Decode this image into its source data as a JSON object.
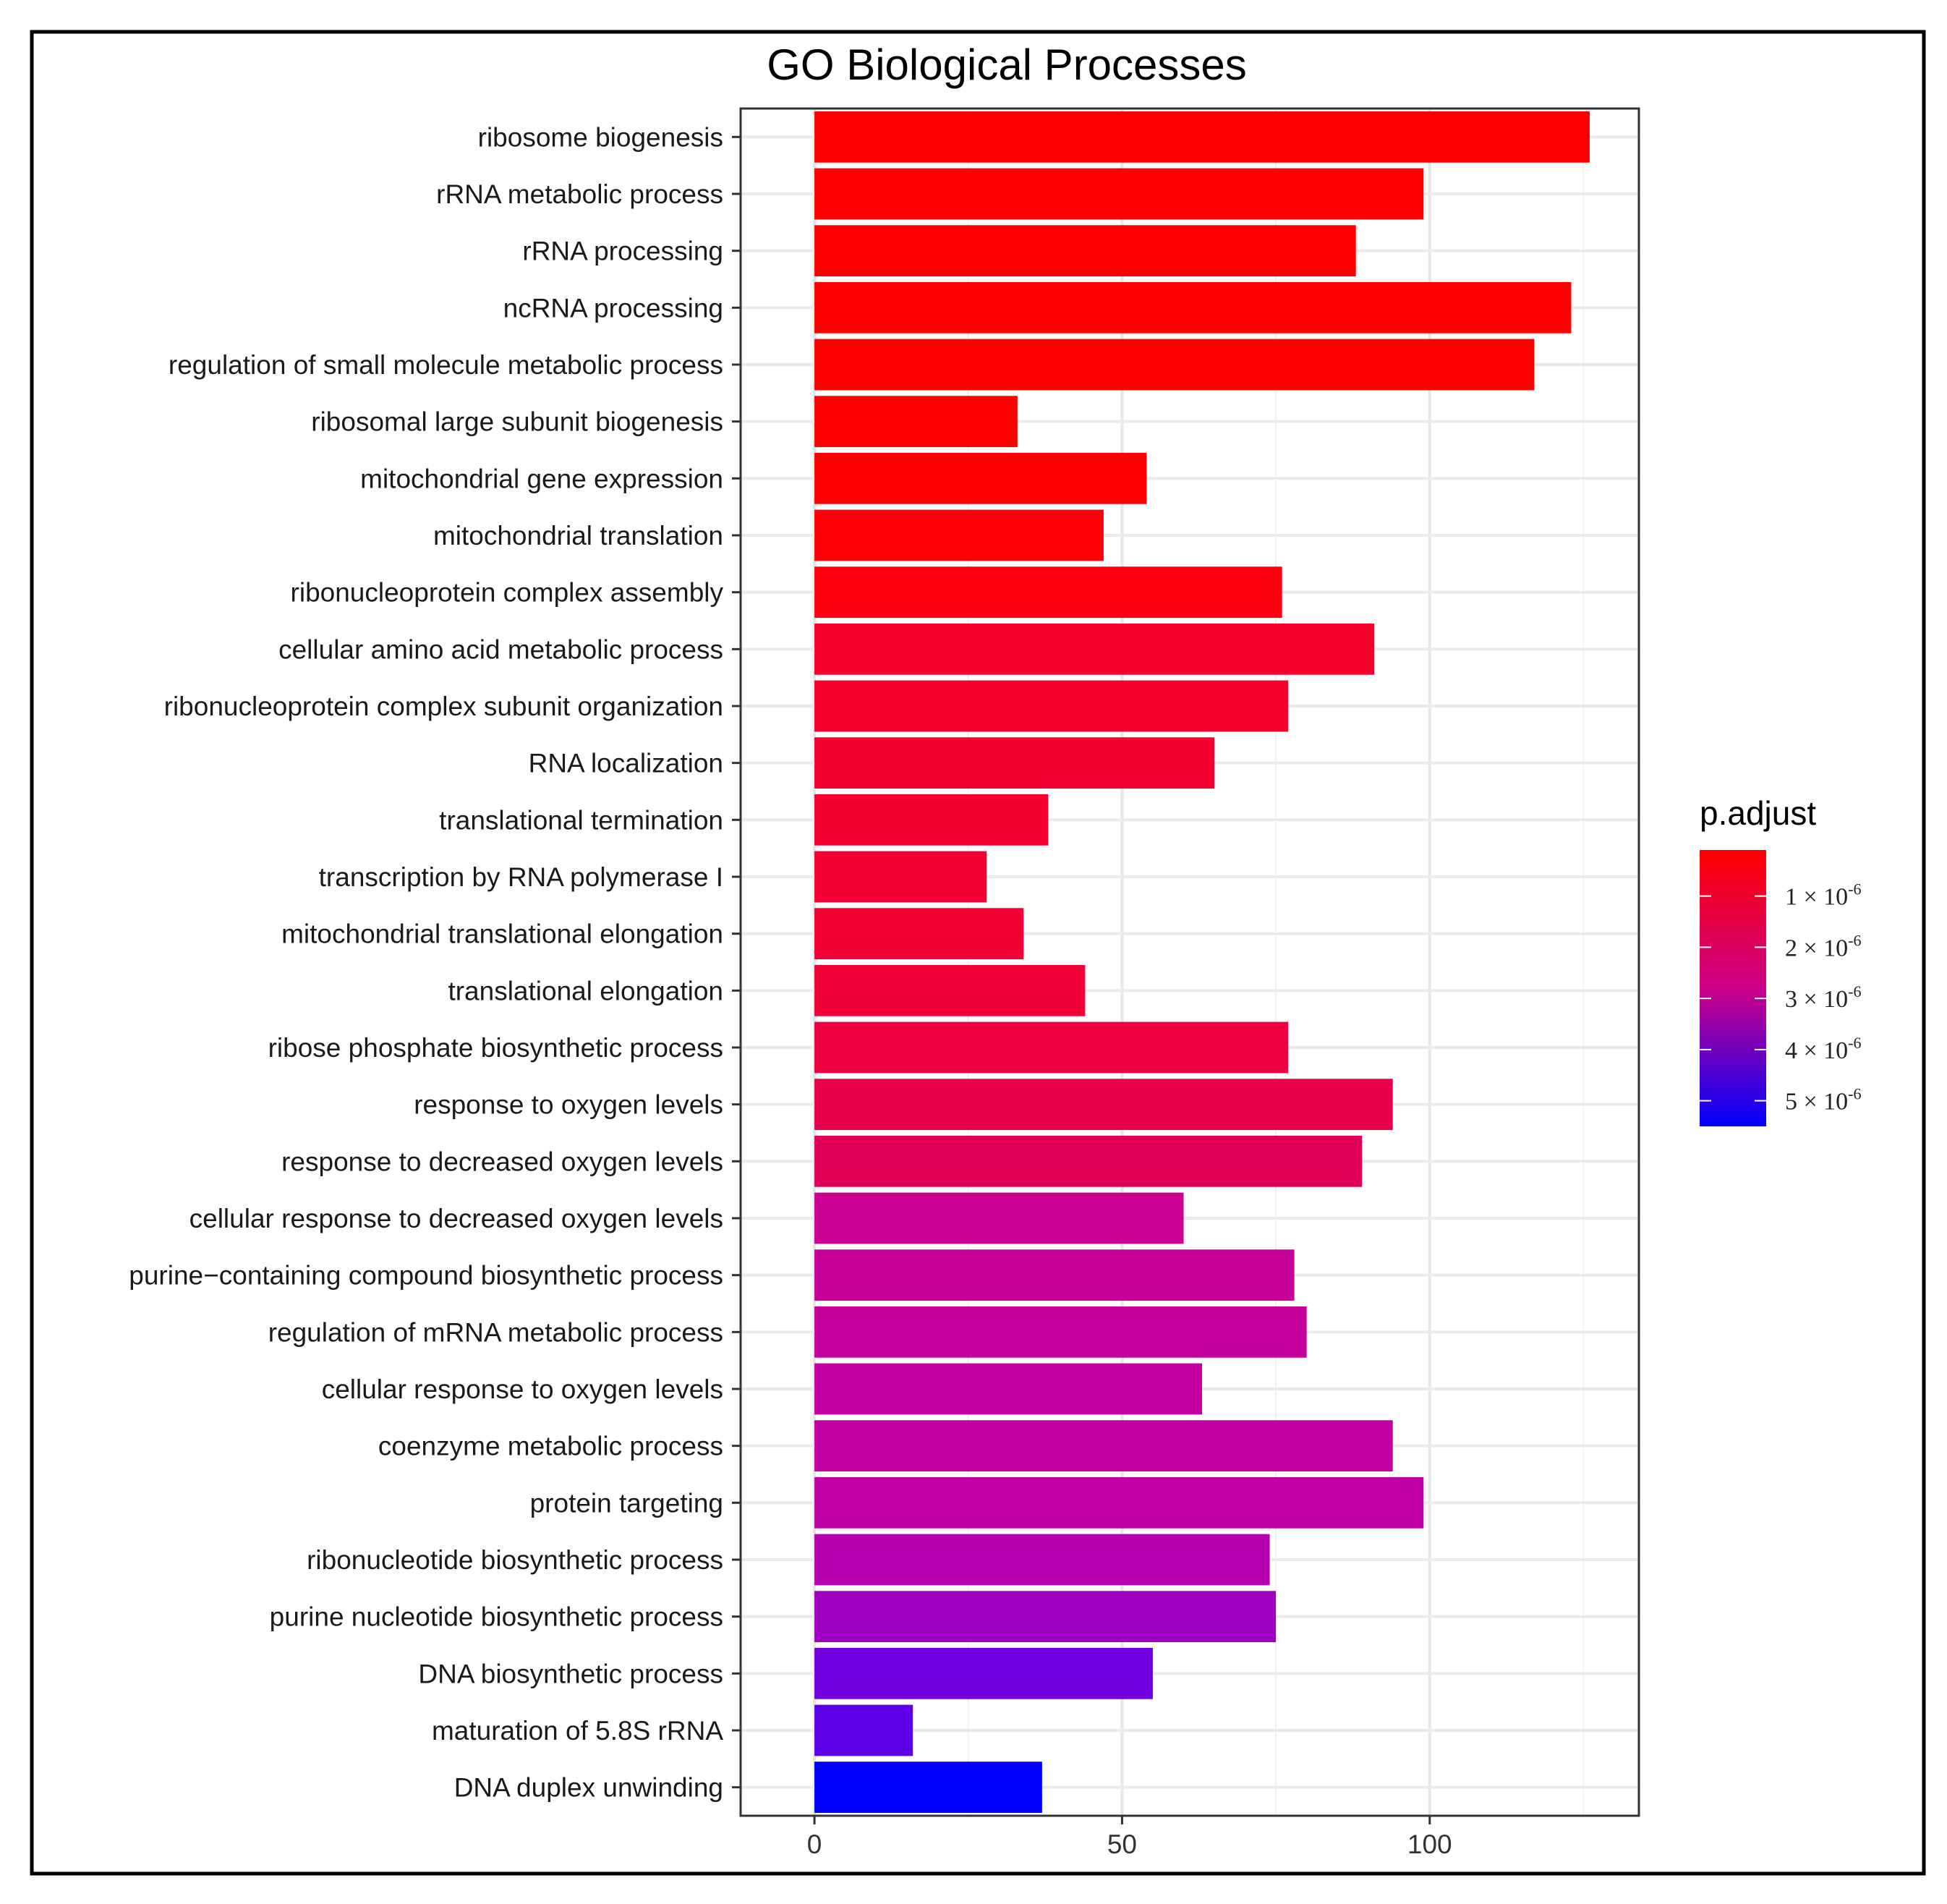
{
  "chart_data": {
    "type": "bar",
    "orientation": "horizontal",
    "title": "GO Biological Processes",
    "xlabel": "",
    "ylabel": "",
    "xlim": [
      -12,
      134
    ],
    "x_ticks": [
      0,
      50,
      100
    ],
    "x_tick_labels": [
      "0",
      "50",
      "100"
    ],
    "grid": true,
    "categories": [
      "ribosome biogenesis",
      "rRNA metabolic process",
      "rRNA processing",
      "ncRNA processing",
      "regulation of small molecule metabolic process",
      "ribosomal large subunit biogenesis",
      "mitochondrial gene expression",
      "mitochondrial translation",
      "ribonucleoprotein complex assembly",
      "cellular amino acid metabolic process",
      "ribonucleoprotein complex subunit organization",
      "RNA localization",
      "translational termination",
      "transcription by RNA polymerase I",
      "mitochondrial translational elongation",
      "translational elongation",
      "ribose phosphate biosynthetic process",
      "response to oxygen levels",
      "response to decreased oxygen levels",
      "cellular response to decreased oxygen levels",
      "purine−containing compound biosynthetic process",
      "regulation of mRNA metabolic process",
      "cellular response to oxygen levels",
      "coenzyme metabolic process",
      "protein targeting",
      "ribonucleotide biosynthetic process",
      "purine nucleotide biosynthetic process",
      "DNA biosynthetic process",
      "maturation of 5.8S rRNA",
      "DNA duplex unwinding"
    ],
    "values": [
      126,
      99,
      88,
      123,
      117,
      33,
      54,
      47,
      76,
      91,
      77,
      65,
      38,
      28,
      34,
      44,
      77,
      94,
      89,
      60,
      78,
      80,
      63,
      94,
      99,
      74,
      75,
      55,
      16,
      37
    ],
    "colors": [
      "#ff0000",
      "#ff0000",
      "#ff0000",
      "#ff0000",
      "#ff0000",
      "#ff0000",
      "#ff0000",
      "#ff0008",
      "#ff0010",
      "#f7002a",
      "#f7002a",
      "#f40030",
      "#f40030",
      "#f30034",
      "#f30034",
      "#f20038",
      "#ef0040",
      "#ea0048",
      "#e00058",
      "#cc0092",
      "#c8009a",
      "#c6009c",
      "#c400a0",
      "#c300a2",
      "#c000a4",
      "#b600b0",
      "#9e00c2",
      "#7000e0",
      "#5c00ea",
      "#0000ff"
    ],
    "legend": {
      "title": "p.adjust",
      "placement": "right",
      "gradient_top": "#ff0000",
      "gradient_mid": "#cc0088",
      "gradient_bottom": "#0000ff",
      "ticks": [
        {
          "label": "1 × 10",
          "exp": "-6",
          "value": 1e-06
        },
        {
          "label": "2 × 10",
          "exp": "-6",
          "value": 2e-06
        },
        {
          "label": "3 × 10",
          "exp": "-6",
          "value": 3e-06
        },
        {
          "label": "4 × 10",
          "exp": "-6",
          "value": 4e-06
        },
        {
          "label": "5 × 10",
          "exp": "-6",
          "value": 5e-06
        }
      ],
      "range": [
        1e-07,
        5.5e-06
      ]
    }
  }
}
